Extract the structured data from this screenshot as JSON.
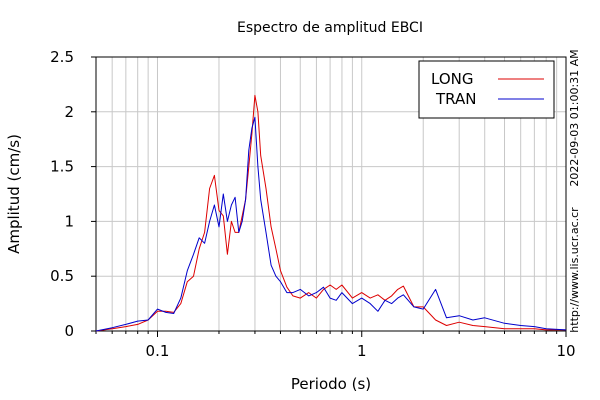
{
  "chart_data": {
    "type": "line",
    "title": "Espectro de amplitud EBCI",
    "xlabel": "Periodo (s)",
    "ylabel": "Amplitud (cm/s)",
    "x_scale": "log",
    "xlim": [
      0.05,
      10
    ],
    "ylim": [
      0,
      2.5
    ],
    "x_ticks": [
      0.1,
      1,
      10
    ],
    "x_tick_labels": [
      "0.1",
      "1",
      "10"
    ],
    "y_ticks": [
      0,
      0.5,
      1,
      1.5,
      2,
      2.5
    ],
    "y_tick_labels": [
      "0",
      "0.5",
      "1",
      "1.5",
      "2",
      "2.5"
    ],
    "grid": true,
    "legend_position": "top-right",
    "timestamp": "2022-09-03 01:00:31 AM",
    "source_url": "http://www.lis.ucr.ac.cr",
    "series": [
      {
        "name": "LONG",
        "color": "#dd0000",
        "x": [
          0.05,
          0.06,
          0.07,
          0.08,
          0.09,
          0.1,
          0.11,
          0.12,
          0.13,
          0.14,
          0.15,
          0.16,
          0.17,
          0.18,
          0.19,
          0.2,
          0.21,
          0.22,
          0.23,
          0.24,
          0.25,
          0.26,
          0.27,
          0.28,
          0.29,
          0.3,
          0.31,
          0.32,
          0.34,
          0.36,
          0.38,
          0.4,
          0.43,
          0.46,
          0.5,
          0.55,
          0.6,
          0.65,
          0.7,
          0.75,
          0.8,
          0.9,
          1.0,
          1.1,
          1.2,
          1.3,
          1.4,
          1.5,
          1.6,
          1.8,
          2.0,
          2.3,
          2.6,
          3.0,
          3.5,
          4.0,
          5.0,
          6.0,
          7.0,
          8.0,
          10.0
        ],
        "y": [
          0.0,
          0.02,
          0.04,
          0.06,
          0.1,
          0.18,
          0.18,
          0.17,
          0.25,
          0.45,
          0.5,
          0.75,
          0.9,
          1.3,
          1.42,
          1.1,
          1.05,
          0.7,
          1.0,
          0.9,
          0.9,
          1.05,
          1.2,
          1.5,
          1.8,
          2.15,
          2.0,
          1.6,
          1.3,
          0.95,
          0.75,
          0.55,
          0.4,
          0.32,
          0.3,
          0.35,
          0.3,
          0.38,
          0.42,
          0.38,
          0.42,
          0.3,
          0.35,
          0.3,
          0.33,
          0.28,
          0.32,
          0.38,
          0.41,
          0.22,
          0.22,
          0.1,
          0.05,
          0.08,
          0.05,
          0.04,
          0.02,
          0.02,
          0.02,
          0.01,
          0.01
        ]
      },
      {
        "name": "TRAN",
        "color": "#0000cc",
        "x": [
          0.05,
          0.06,
          0.07,
          0.08,
          0.09,
          0.1,
          0.11,
          0.12,
          0.13,
          0.14,
          0.15,
          0.16,
          0.17,
          0.18,
          0.19,
          0.2,
          0.21,
          0.22,
          0.23,
          0.24,
          0.25,
          0.26,
          0.27,
          0.28,
          0.29,
          0.3,
          0.31,
          0.32,
          0.34,
          0.36,
          0.38,
          0.4,
          0.43,
          0.46,
          0.5,
          0.55,
          0.6,
          0.65,
          0.7,
          0.75,
          0.8,
          0.9,
          1.0,
          1.1,
          1.2,
          1.3,
          1.4,
          1.5,
          1.6,
          1.8,
          2.0,
          2.3,
          2.6,
          3.0,
          3.5,
          4.0,
          5.0,
          6.0,
          7.0,
          8.0,
          10.0
        ],
        "y": [
          0.0,
          0.03,
          0.06,
          0.09,
          0.1,
          0.2,
          0.17,
          0.16,
          0.3,
          0.55,
          0.7,
          0.85,
          0.8,
          1.0,
          1.15,
          0.95,
          1.25,
          1.0,
          1.15,
          1.22,
          0.9,
          1.0,
          1.2,
          1.65,
          1.85,
          1.95,
          1.5,
          1.2,
          0.9,
          0.6,
          0.5,
          0.45,
          0.35,
          0.35,
          0.38,
          0.32,
          0.35,
          0.4,
          0.3,
          0.28,
          0.35,
          0.25,
          0.3,
          0.25,
          0.18,
          0.28,
          0.25,
          0.3,
          0.33,
          0.22,
          0.2,
          0.38,
          0.12,
          0.14,
          0.1,
          0.12,
          0.07,
          0.05,
          0.04,
          0.02,
          0.01
        ]
      }
    ]
  }
}
